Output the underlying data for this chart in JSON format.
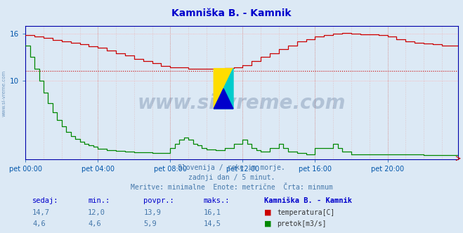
{
  "title": "Kamniška B. - Kamnik",
  "title_color": "#0000cc",
  "bg_color": "#dce9f5",
  "plot_bg_color": "#dce9f5",
  "grid_color_h": "#ff9999",
  "grid_color_v": "#cc9999",
  "x_ticks_labels": [
    "pet 00:00",
    "pet 04:00",
    "pet 08:00",
    "pet 12:00",
    "pet 16:00",
    "pet 20:00"
  ],
  "x_ticks_pos": [
    0,
    48,
    96,
    144,
    192,
    240
  ],
  "x_max": 287,
  "y_min": 0,
  "y_max": 17,
  "y_ticks": [
    10,
    16
  ],
  "temp_color": "#cc0000",
  "flow_color": "#008800",
  "avg_line_color": "#cc0000",
  "avg_line_value": 11.3,
  "watermark_text": "www.si-vreme.com",
  "watermark_color": "#1a3a6b",
  "subtitle_lines": [
    "Slovenija / reke in morje.",
    "zadnji dan / 5 minut.",
    "Meritve: minimalne  Enote: metrične  Črta: minmum"
  ],
  "subtitle_color": "#4477aa",
  "table_headers": [
    "sedaj:",
    "min.:",
    "povpr.:",
    "maks.:",
    "Kamniška B. - Kamnik"
  ],
  "table_row1": [
    "14,7",
    "12,0",
    "13,9",
    "16,1"
  ],
  "table_row2": [
    "4,6",
    "4,6",
    "5,9",
    "14,5"
  ],
  "legend_labels": [
    "temperatura[C]",
    "pretok[m3/s]"
  ],
  "border_color": "#0000aa",
  "tick_color": "#0055aa",
  "side_text": "www.si-vreme.com",
  "side_text_color": "#4477aa"
}
